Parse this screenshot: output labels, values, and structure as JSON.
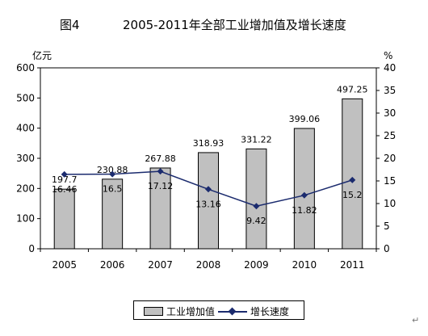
{
  "figure_label": "图4",
  "page_title": "2005-2011年全部工业增加值及增长速度",
  "corner_mark": "↵",
  "chart_data": {
    "type": "bar",
    "categories": [
      "2005",
      "2006",
      "2007",
      "2008",
      "2009",
      "2010",
      "2011"
    ],
    "series": [
      {
        "name": "工业增加值",
        "type": "bar",
        "axis": "left",
        "color": "#c0c0c0",
        "values": [
          197.7,
          230.88,
          267.88,
          318.93,
          331.22,
          399.06,
          497.25
        ],
        "labels": [
          "197.7",
          "230.88",
          "267.88",
          "318.93",
          "331.22",
          "399.06",
          "497.25"
        ]
      },
      {
        "name": "增长速度",
        "type": "line",
        "axis": "right",
        "color": "#1b2b6e",
        "values": [
          16.46,
          16.5,
          17.12,
          13.16,
          9.42,
          11.82,
          15.2
        ],
        "labels": [
          "16.46",
          "16.5",
          "17.12",
          "13.16",
          "9.42",
          "11.82",
          "15.2"
        ]
      }
    ],
    "y_left": {
      "unit": "亿元",
      "ylim": [
        0,
        600
      ],
      "ticks": [
        "0",
        "100",
        "200",
        "300",
        "400",
        "500",
        "600"
      ]
    },
    "y_right": {
      "unit": "%",
      "ylim": [
        0,
        40
      ],
      "ticks": [
        "0",
        "5",
        "10",
        "15",
        "20",
        "25",
        "30",
        "35",
        "40"
      ]
    },
    "grid": false,
    "legend": "bottom"
  }
}
